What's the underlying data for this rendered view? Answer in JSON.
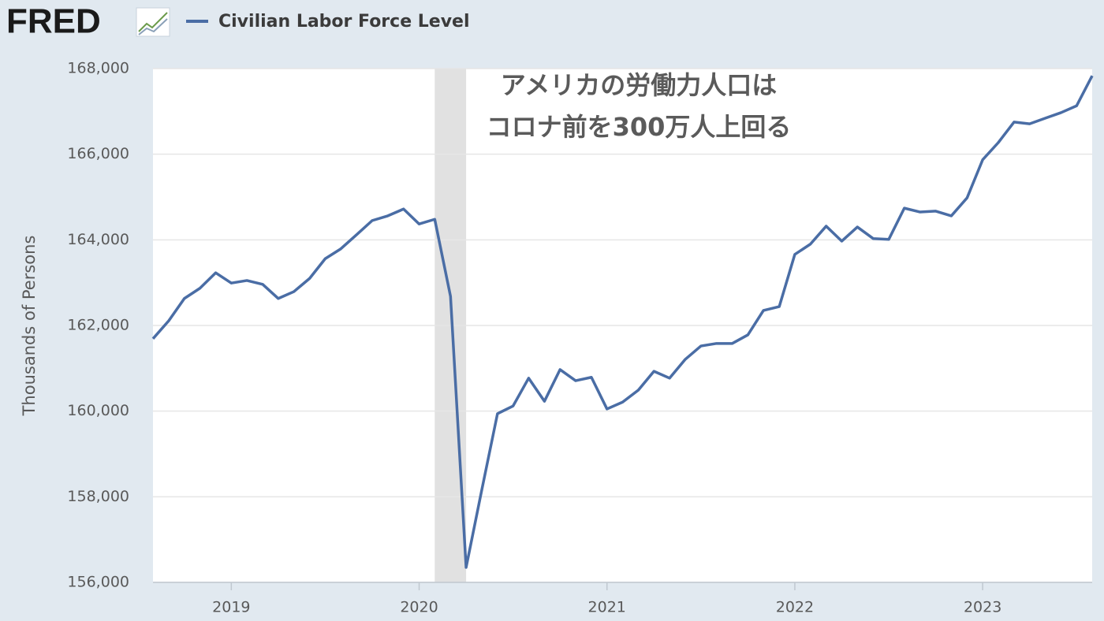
{
  "logo": "FRED",
  "chart_data": {
    "type": "line",
    "series": [
      {
        "name": "Civilian Labor Force Level",
        "color": "#4a6da5",
        "values": [
          161690,
          162110,
          162630,
          162870,
          163230,
          162990,
          163050,
          162960,
          162630,
          162790,
          163100,
          163560,
          163790,
          164120,
          164450,
          164560,
          164720,
          164370,
          164480,
          162680,
          156350,
          158150,
          159940,
          160120,
          160770,
          160230,
          160970,
          160710,
          160790,
          160050,
          160210,
          160490,
          160930,
          160770,
          161210,
          161520,
          161580,
          161580,
          161780,
          162350,
          162440,
          163660,
          163900,
          164320,
          163970,
          164300,
          164030,
          164010,
          164740,
          164650,
          164670,
          164560,
          164980,
          165870,
          166270,
          166750,
          166710,
          166840,
          166970,
          167130,
          167830
        ]
      }
    ],
    "x": [
      2018.583,
      2018.667,
      2018.75,
      2018.833,
      2018.917,
      2019,
      2019.083,
      2019.167,
      2019.25,
      2019.333,
      2019.417,
      2019.5,
      2019.583,
      2019.667,
      2019.75,
      2019.833,
      2019.917,
      2020,
      2020.083,
      2020.167,
      2020.25,
      2020.333,
      2020.417,
      2020.5,
      2020.583,
      2020.667,
      2020.75,
      2020.833,
      2020.917,
      2021,
      2021.083,
      2021.167,
      2021.25,
      2021.333,
      2021.417,
      2021.5,
      2021.583,
      2021.667,
      2021.75,
      2021.833,
      2021.917,
      2022,
      2022.083,
      2022.167,
      2022.25,
      2022.333,
      2022.417,
      2022.5,
      2022.583,
      2022.667,
      2022.75,
      2022.833,
      2022.917,
      2023,
      2023.083,
      2023.167,
      2023.25,
      2023.333,
      2023.417,
      2023.5,
      2023.583
    ],
    "xlim": [
      2018.583,
      2023.583
    ],
    "xticks": [
      2019,
      2020,
      2021,
      2022,
      2023
    ],
    "ylim": [
      156000,
      168000
    ],
    "yticks": [
      {
        "value": 156000,
        "label": "156,000"
      },
      {
        "value": 158000,
        "label": "158,000"
      },
      {
        "value": 160000,
        "label": "160,000"
      },
      {
        "value": 162000,
        "label": "162,000"
      },
      {
        "value": 164000,
        "label": "164,000"
      },
      {
        "value": 166000,
        "label": "166,000"
      },
      {
        "value": 168000,
        "label": "168,000"
      }
    ],
    "ylabel": "Thousands of Persons",
    "shading": [
      2020.083,
      2020.25
    ],
    "grid": true,
    "annotation": [
      "アメリカの労働力人口は",
      "コロナ前を300万人上回る"
    ]
  }
}
